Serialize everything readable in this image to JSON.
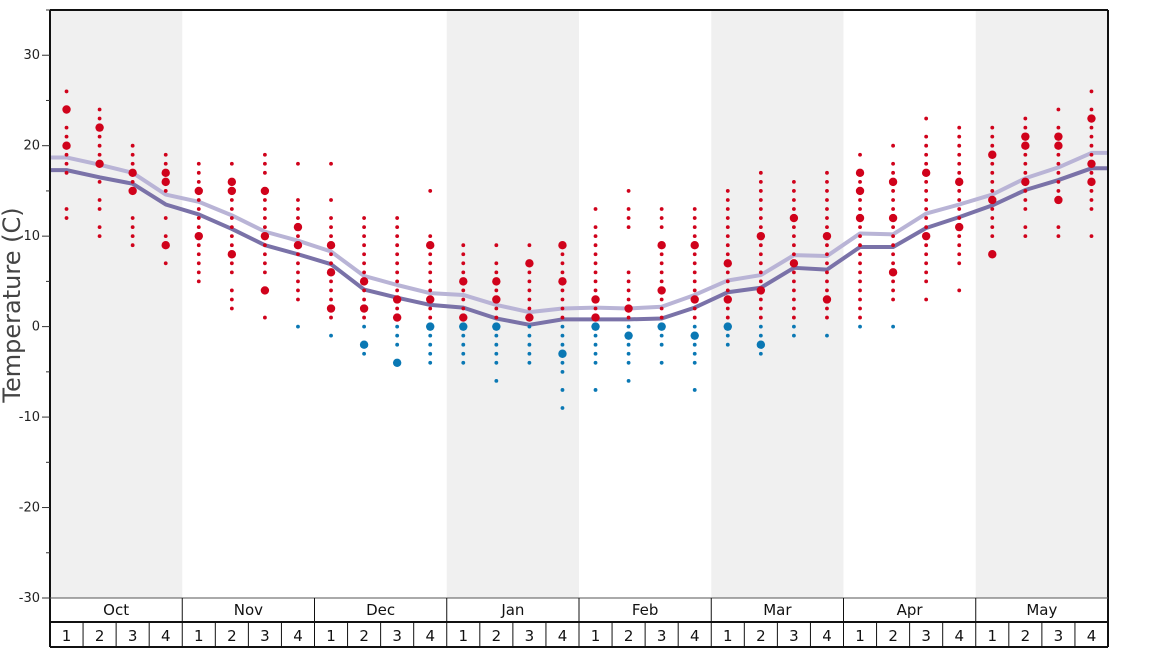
{
  "chart_data": {
    "type": "scatter",
    "title": "",
    "ylabel": "Temperature (C)",
    "ylim": [
      -30,
      35
    ],
    "yticks": [
      -30,
      -20,
      -10,
      0,
      10,
      20,
      30
    ],
    "months": [
      "Oct",
      "Nov",
      "Dec",
      "Jan",
      "Feb",
      "Mar",
      "Apr",
      "May"
    ],
    "weeks": [
      "1",
      "2",
      "3",
      "4"
    ],
    "shaded_months": [
      "Oct",
      "Jan",
      "Mar",
      "May"
    ],
    "colors": {
      "warm_dots": "#d0021b",
      "cold_dots": "#0a78b4",
      "line_upper": "#b9b4d6",
      "line_lower": "#7a72a8",
      "shade": "#f0f0f0"
    },
    "series": [
      {
        "role": "upper-line",
        "values": [
          18.7,
          17.9,
          17.0,
          14.6,
          13.8,
          12.3,
          10.5,
          9.5,
          8.3,
          5.6,
          4.6,
          3.7,
          3.5,
          2.4,
          1.6,
          2.0,
          2.1,
          2.0,
          2.2,
          3.5,
          5.1,
          5.7,
          7.9,
          7.8,
          10.3,
          10.2,
          12.5,
          13.5,
          14.6,
          16.4,
          17.6,
          19.2
        ]
      },
      {
        "role": "lower-line",
        "values": [
          17.3,
          16.5,
          15.8,
          13.5,
          12.4,
          10.8,
          9.0,
          8.0,
          6.9,
          4.1,
          3.2,
          2.4,
          2.1,
          0.9,
          0.2,
          0.8,
          0.8,
          0.8,
          0.9,
          2.1,
          3.8,
          4.3,
          6.5,
          6.3,
          8.8,
          8.8,
          10.9,
          12.1,
          13.4,
          15.1,
          16.2,
          17.5
        ]
      }
    ],
    "dot_columns": [
      {
        "values": [
          26,
          24,
          22,
          21,
          20,
          19,
          18,
          17,
          13,
          12
        ],
        "big": [
          24,
          20
        ]
      },
      {
        "values": [
          24,
          23,
          22,
          21,
          20,
          19,
          18,
          16,
          14,
          13,
          11,
          10
        ],
        "big": [
          18,
          22
        ]
      },
      {
        "values": [
          20,
          19,
          18,
          17,
          16,
          15,
          12,
          11,
          10,
          9
        ],
        "big": [
          17,
          15
        ]
      },
      {
        "values": [
          19,
          18,
          17,
          16,
          15,
          12,
          10,
          9,
          7
        ],
        "big": [
          16,
          17,
          9
        ]
      },
      {
        "values": [
          18,
          17,
          16,
          15,
          14,
          13,
          12,
          11,
          10,
          9,
          8,
          7,
          6,
          5
        ],
        "big": [
          15,
          10
        ]
      },
      {
        "values": [
          18,
          16,
          15,
          14,
          13,
          12,
          11,
          10,
          9,
          8,
          7,
          6,
          4,
          3,
          2
        ],
        "big": [
          16,
          15,
          8
        ]
      },
      {
        "values": [
          19,
          18,
          17,
          15,
          14,
          13,
          12,
          11,
          10,
          9,
          8,
          7,
          6,
          4,
          1
        ],
        "big": [
          15,
          10,
          4
        ]
      },
      {
        "values": [
          18,
          14,
          13,
          12,
          11,
          10,
          9,
          8,
          7,
          6,
          5,
          4,
          3,
          0
        ],
        "big": [
          9,
          11
        ]
      },
      {
        "values": [
          18,
          14,
          12,
          11,
          10,
          9,
          8,
          7,
          6,
          5,
          4,
          3,
          2,
          1,
          -1
        ],
        "big": [
          9,
          6,
          2
        ]
      },
      {
        "values": [
          12,
          11,
          10,
          9,
          8,
          7,
          6,
          5,
          4,
          3,
          2,
          1,
          0,
          -2,
          -3
        ],
        "big": [
          5,
          2,
          -2
        ]
      },
      {
        "values": [
          12,
          11,
          10,
          9,
          8,
          7,
          6,
          5,
          4,
          3,
          2,
          1,
          0,
          -1,
          -2,
          -4
        ],
        "big": [
          3,
          1,
          -4
        ]
      },
      {
        "values": [
          15,
          10,
          9,
          8,
          7,
          6,
          5,
          4,
          3,
          2,
          1,
          0,
          -1,
          -2,
          -3,
          -4
        ],
        "big": [
          9,
          3,
          0
        ]
      },
      {
        "values": [
          9,
          8,
          7,
          6,
          5,
          4,
          3,
          2,
          1,
          0,
          -1,
          -2,
          -3,
          -4
        ],
        "big": [
          5,
          0,
          1
        ]
      },
      {
        "values": [
          9,
          7,
          6,
          5,
          4,
          3,
          2,
          1,
          0,
          -1,
          -2,
          -3,
          -4,
          -6
        ],
        "big": [
          5,
          3,
          0
        ]
      },
      {
        "values": [
          9,
          7,
          6,
          5,
          4,
          3,
          2,
          1,
          0,
          -1,
          -2,
          -3,
          -4
        ],
        "big": [
          7,
          1
        ]
      },
      {
        "values": [
          9,
          8,
          7,
          6,
          5,
          4,
          3,
          2,
          1,
          0,
          -1,
          -2,
          -3,
          -4,
          -5,
          -7,
          -9
        ],
        "big": [
          5,
          9,
          -3
        ]
      },
      {
        "values": [
          13,
          11,
          10,
          9,
          8,
          7,
          6,
          5,
          4,
          3,
          2,
          1,
          0,
          -1,
          -2,
          -3,
          -4,
          -7
        ],
        "big": [
          3,
          1,
          0
        ]
      },
      {
        "values": [
          15,
          13,
          12,
          11,
          6,
          5,
          4,
          3,
          2,
          1,
          0,
          -1,
          -2,
          -3,
          -4,
          -6
        ],
        "big": [
          2,
          -1
        ]
      },
      {
        "values": [
          13,
          12,
          11,
          9,
          8,
          7,
          6,
          5,
          4,
          3,
          2,
          1,
          0,
          -1,
          -2,
          -4
        ],
        "big": [
          9,
          4,
          0
        ]
      },
      {
        "values": [
          13,
          12,
          11,
          10,
          9,
          8,
          7,
          6,
          5,
          4,
          3,
          2,
          1,
          0,
          -1,
          -2,
          -3,
          -4,
          -7
        ],
        "big": [
          9,
          3,
          -1
        ]
      },
      {
        "values": [
          15,
          14,
          13,
          12,
          11,
          10,
          9,
          8,
          7,
          6,
          5,
          4,
          3,
          2,
          1,
          0,
          -1,
          -2
        ],
        "big": [
          7,
          3,
          0
        ]
      },
      {
        "values": [
          17,
          16,
          15,
          14,
          13,
          12,
          11,
          10,
          9,
          8,
          7,
          6,
          5,
          4,
          3,
          2,
          1,
          0,
          -1,
          -2,
          -3
        ],
        "big": [
          10,
          4,
          -2
        ]
      },
      {
        "values": [
          16,
          15,
          14,
          13,
          12,
          11,
          10,
          9,
          8,
          7,
          6,
          5,
          4,
          3,
          2,
          1,
          0,
          -1
        ],
        "big": [
          12,
          7
        ]
      },
      {
        "values": [
          17,
          16,
          15,
          14,
          13,
          12,
          11,
          10,
          9,
          8,
          7,
          6,
          5,
          4,
          3,
          2,
          1,
          -1
        ],
        "big": [
          10,
          3
        ]
      },
      {
        "values": [
          19,
          17,
          16,
          15,
          14,
          13,
          12,
          11,
          10,
          9,
          8,
          7,
          6,
          5,
          4,
          3,
          2,
          1,
          0
        ],
        "big": [
          15,
          12,
          17
        ]
      },
      {
        "values": [
          20,
          18,
          17,
          16,
          15,
          14,
          13,
          12,
          11,
          10,
          9,
          8,
          7,
          6,
          5,
          4,
          3,
          0
        ],
        "big": [
          16,
          12,
          6
        ]
      },
      {
        "values": [
          23,
          21,
          20,
          19,
          18,
          17,
          16,
          15,
          14,
          13,
          12,
          11,
          10,
          9,
          8,
          7,
          6,
          5,
          3
        ],
        "big": [
          17,
          10
        ]
      },
      {
        "values": [
          22,
          21,
          20,
          19,
          18,
          17,
          16,
          15,
          14,
          13,
          12,
          11,
          10,
          9,
          8,
          7,
          4
        ],
        "big": [
          16,
          11
        ]
      },
      {
        "values": [
          22,
          21,
          20,
          19,
          18,
          17,
          16,
          15,
          14,
          13,
          12,
          11,
          10,
          8
        ],
        "big": [
          19,
          14,
          8
        ]
      },
      {
        "values": [
          23,
          22,
          21,
          20,
          19,
          18,
          17,
          16,
          15,
          14,
          13,
          11,
          10
        ],
        "big": [
          21,
          20,
          16
        ]
      },
      {
        "values": [
          24,
          22,
          21,
          20,
          19,
          18,
          17,
          16,
          15,
          14,
          11,
          10
        ],
        "big": [
          21,
          20,
          14
        ]
      },
      {
        "values": [
          26,
          24,
          23,
          22,
          21,
          20,
          19,
          18,
          17,
          16,
          15,
          14,
          13,
          10
        ],
        "big": [
          23,
          18,
          16
        ]
      }
    ]
  }
}
